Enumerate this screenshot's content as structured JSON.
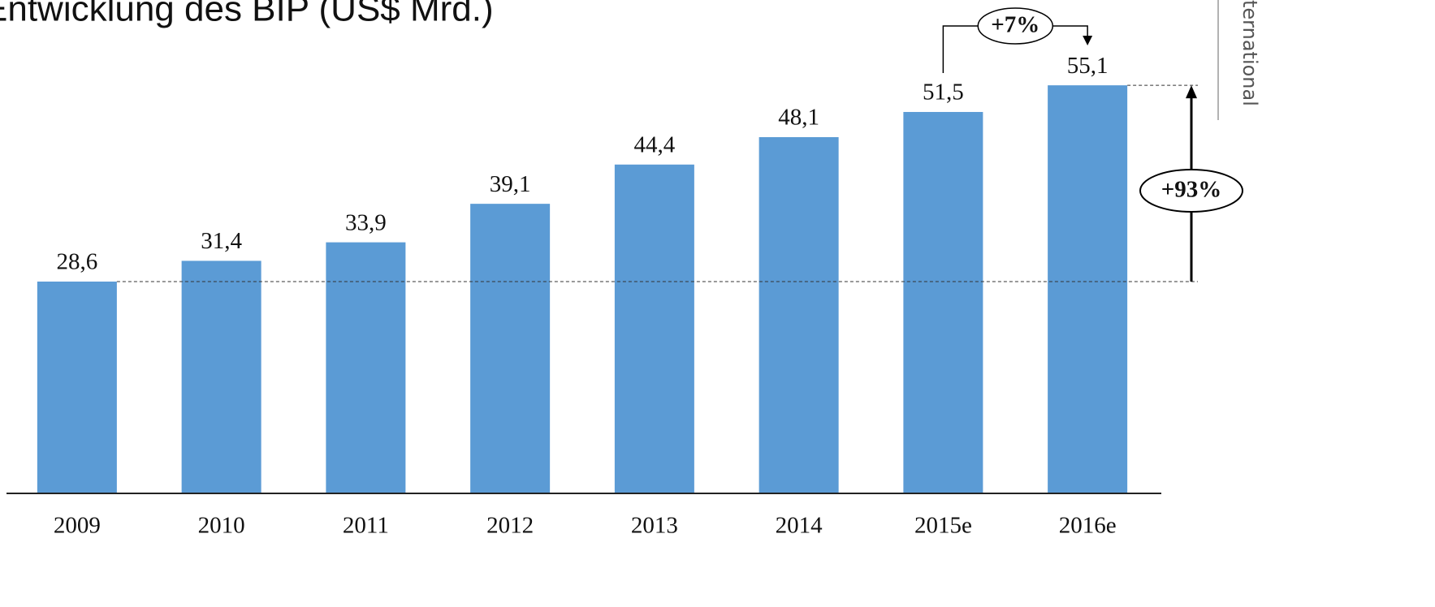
{
  "chart_data": {
    "type": "bar",
    "title": "Entwicklung des BIP (US$ Mrd.)",
    "side_text": "ternational",
    "categories": [
      "2009",
      "2010",
      "2011",
      "2012",
      "2013",
      "2014",
      "2015e",
      "2016e"
    ],
    "values": [
      28.6,
      31.4,
      33.9,
      39.1,
      44.4,
      48.1,
      51.5,
      55.1
    ],
    "value_labels": [
      "28,6",
      "31,4",
      "33,9",
      "39,1",
      "44,4",
      "48,1",
      "51,5",
      "55,1"
    ],
    "color": "#5b9bd5",
    "ylim": [
      0,
      60
    ],
    "annotations": [
      "+7%",
      "+93%"
    ]
  }
}
